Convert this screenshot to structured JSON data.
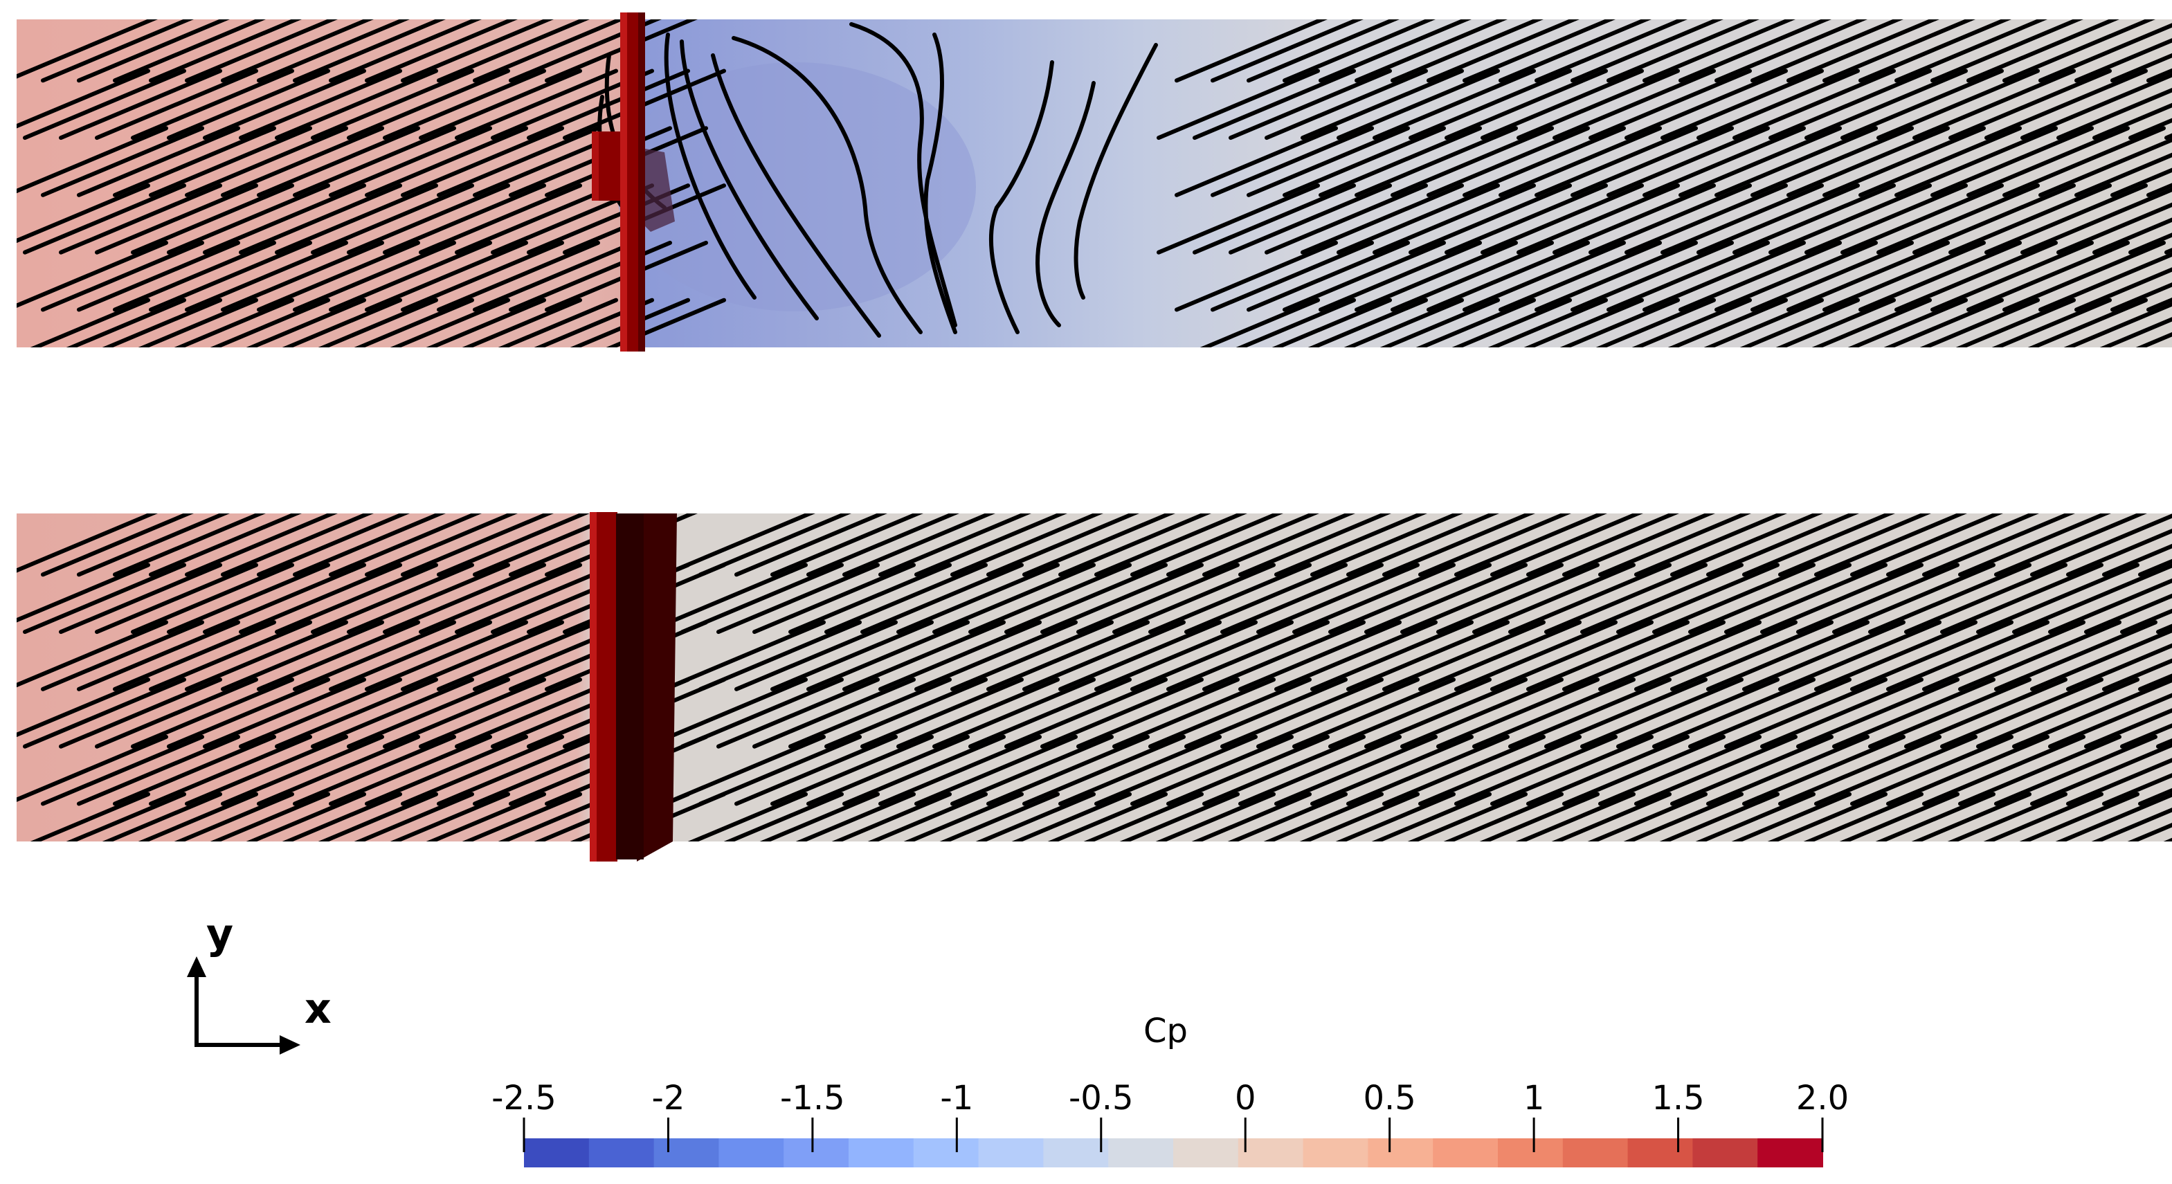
{
  "panels": [
    {
      "id": "top",
      "name": "flow-panel-top"
    },
    {
      "id": "bottom",
      "name": "flow-panel-bottom"
    }
  ],
  "axes_triad": {
    "y_label": "y",
    "x_label": "x"
  },
  "colorbar": {
    "title": "Cp",
    "tick_labels": [
      "-2.5",
      "-2",
      "-1.5",
      "-1",
      "-0.5",
      "0",
      "0.5",
      "1",
      "1.5",
      "2.0"
    ],
    "range": [
      -2.5,
      2.0
    ],
    "colormap": "cool-to-warm",
    "colors": [
      "#3b4cc0",
      "#4a63d3",
      "#5a7be0",
      "#6c8ff0",
      "#7f9ff7",
      "#92b4fe",
      "#a3c2fe",
      "#b5cdfa",
      "#c6d6f1",
      "#d5dbe5",
      "#e4d9d2",
      "#efcebd",
      "#f5c0a7",
      "#f7b194",
      "#f59d80",
      "#ef886b",
      "#e57058",
      "#d75445",
      "#c43c3c",
      "#b40426"
    ]
  },
  "colors": {
    "wall": "#8b0000",
    "wall_shadow": "#3a0000",
    "upstream_field": "#e8b3ac",
    "downstream_field": "#d9d4d0",
    "wake_field": "#a7b6e0",
    "streamline": "#000000"
  }
}
